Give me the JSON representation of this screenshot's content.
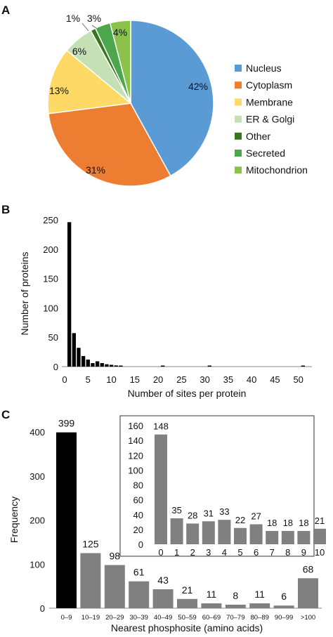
{
  "panels": {
    "a": "A",
    "b": "B",
    "c": "C"
  },
  "chart_data": [
    {
      "panel": "A",
      "type": "pie",
      "slices": [
        {
          "label": "Nucleus",
          "value": 42,
          "display": "42%",
          "color": "#5b9bd5"
        },
        {
          "label": "Cytoplasm",
          "value": 31,
          "display": "31%",
          "color": "#ed7d31"
        },
        {
          "label": "Membrane",
          "value": 13,
          "display": "13%",
          "color": "#ffd966"
        },
        {
          "label": "ER & Golgi",
          "value": 6,
          "display": "6%",
          "color": "#c5e0b4"
        },
        {
          "label": "Other",
          "value": 1,
          "display": "1%",
          "color": "#38761d"
        },
        {
          "label": "Secreted",
          "value": 3,
          "display": "3%",
          "color": "#4ca64c"
        },
        {
          "label": "Mitochondrion",
          "value": 4,
          "display": "4%",
          "color": "#8bc34a"
        }
      ],
      "legend_position": "right"
    },
    {
      "panel": "B",
      "type": "bar",
      "xlabel": "Number of sites per protein",
      "ylabel": "Number of proteins",
      "x": [
        1,
        2,
        3,
        4,
        5,
        6,
        7,
        8,
        9,
        10,
        11,
        12,
        21,
        31,
        51
      ],
      "values": [
        246,
        57,
        32,
        18,
        12,
        6,
        9,
        6,
        4,
        3,
        2,
        1,
        1,
        1,
        1
      ],
      "xlim": [
        0,
        52
      ],
      "ylim": [
        0,
        250
      ],
      "xticks": [
        0,
        5,
        10,
        15,
        20,
        25,
        30,
        35,
        40,
        45,
        50
      ],
      "yticks": [
        0,
        50,
        100,
        150,
        200,
        250
      ],
      "color": "#000000"
    },
    {
      "panel": "C",
      "type": "bar",
      "xlabel": "Nearest phosphosite (amino acids)",
      "ylabel": "Frequency",
      "categories": [
        "0–9",
        "10–19",
        "20–29",
        "30–39",
        "40–49",
        "50–59",
        "60–69",
        "70–79",
        "80–89",
        "90–99",
        ">100"
      ],
      "values": [
        399,
        125,
        98,
        61,
        43,
        21,
        11,
        8,
        11,
        6,
        68
      ],
      "ylim": [
        0,
        400
      ],
      "yticks": [
        0,
        100,
        200,
        300,
        400
      ],
      "highlight_color": "#000000",
      "color": "#808080"
    },
    {
      "panel": "C inset",
      "type": "bar",
      "categories": [
        "0",
        "1",
        "2",
        "3",
        "4",
        "5",
        "6",
        "7",
        "8",
        "9",
        "10"
      ],
      "values": [
        148,
        35,
        28,
        31,
        33,
        22,
        27,
        18,
        18,
        18,
        21
      ],
      "ylim": [
        0,
        160
      ],
      "yticks": [
        0,
        20,
        40,
        60,
        80,
        100,
        120,
        140,
        160
      ],
      "color": "#808080"
    }
  ]
}
